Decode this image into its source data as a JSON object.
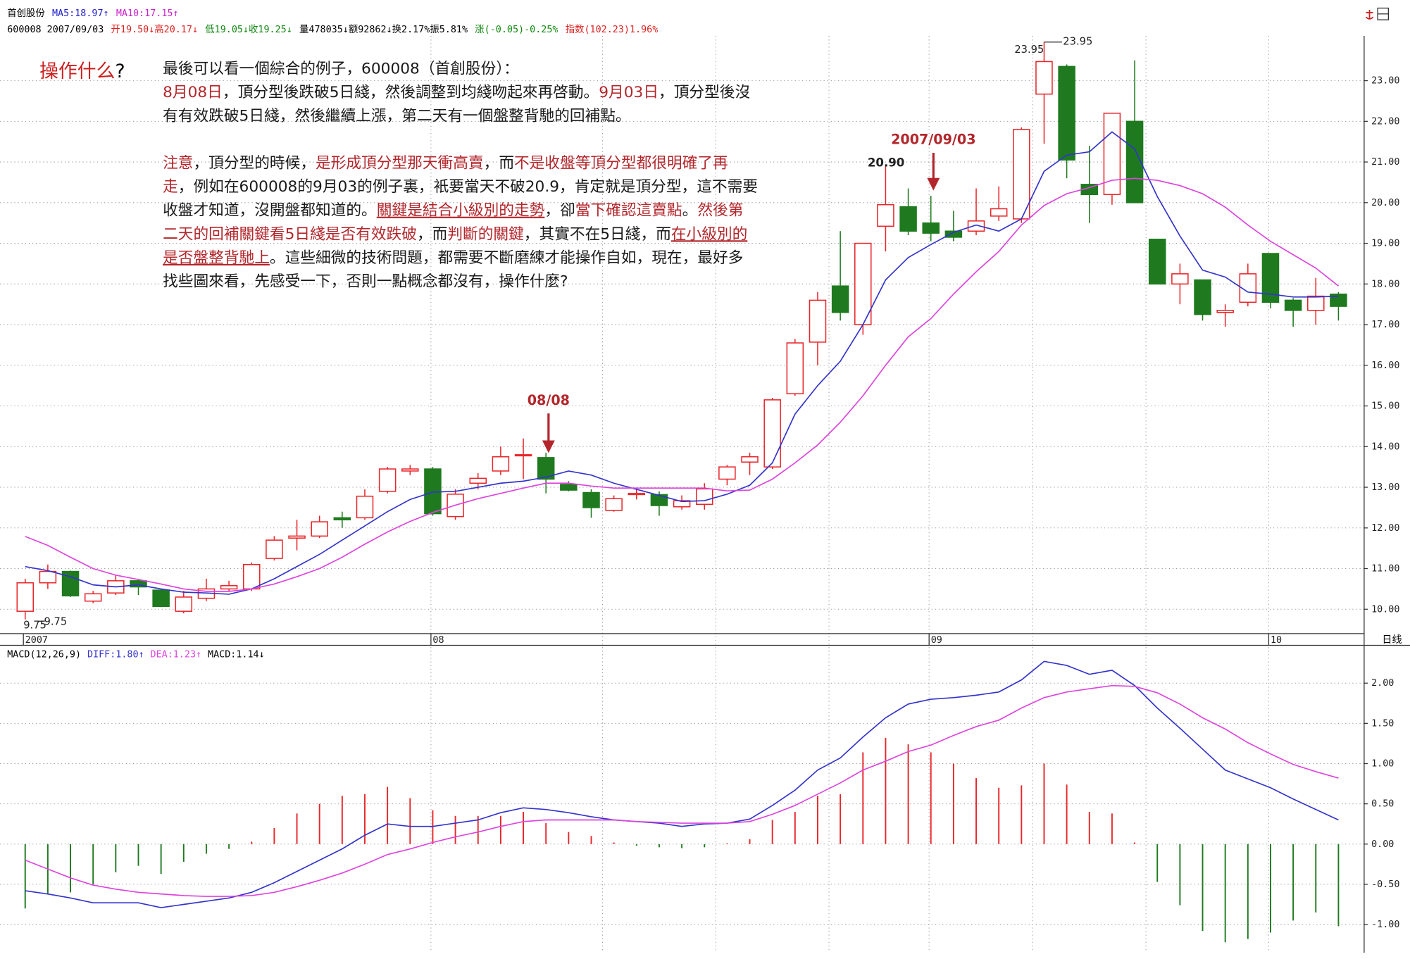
{
  "chart_data": [
    {
      "type": "candlestick",
      "legend_lines": [
        [
          {
            "text": "首创股份",
            "color": "#000000"
          },
          {
            "text": "MA5:18.97↑",
            "color": "#2222cc"
          },
          {
            "text": "MA10:17.15↑",
            "color": "#cc22cc"
          }
        ],
        [
          {
            "text": "600008 2007/09/03",
            "color": "#000000"
          },
          {
            "text": "开19.50↓高20.17↓",
            "color": "#dd2222"
          },
          {
            "text": "低19.05↓收19.25↓",
            "color": "#118811"
          },
          {
            "text": "量478035↓额92862↓换2.17%振5.81%",
            "color": "#000000"
          },
          {
            "text": "涨(-0.05)-0.25%",
            "color": "#118811"
          },
          {
            "text": "指数(102.23)1.96%",
            "color": "#dd2222"
          }
        ]
      ],
      "period": "日线",
      "categories": [
        "2007",
        null,
        null,
        null,
        null,
        null,
        null,
        null,
        null,
        null,
        null,
        null,
        null,
        null,
        null,
        null,
        null,
        null,
        "08",
        null,
        null,
        null,
        null,
        null,
        null,
        null,
        null,
        null,
        null,
        null,
        null,
        null,
        null,
        null,
        null,
        null,
        null,
        null,
        null,
        null,
        "09",
        null,
        null,
        null,
        null,
        null,
        null,
        null,
        null,
        null,
        null,
        null,
        null,
        null,
        null,
        "10",
        null,
        null,
        null
      ],
      "open": [
        9.95,
        10.65,
        10.93,
        10.2,
        10.4,
        10.7,
        10.47,
        9.95,
        10.27,
        10.5,
        10.5,
        11.25,
        11.75,
        11.8,
        12.25,
        12.25,
        12.9,
        13.4,
        13.45,
        12.28,
        13.1,
        13.4,
        13.78,
        13.73,
        13.07,
        12.87,
        12.43,
        12.82,
        12.82,
        12.52,
        12.58,
        13.2,
        13.62,
        13.5,
        15.3,
        16.57,
        17.95,
        17.0,
        19.42,
        19.9,
        19.5,
        19.3,
        19.3,
        19.67,
        19.6,
        22.67,
        23.35,
        20.45,
        20.2,
        22.0,
        19.1,
        18.0,
        18.1,
        17.3,
        17.55,
        18.75,
        17.6,
        17.35,
        17.75
      ],
      "high": [
        10.75,
        11.1,
        10.95,
        10.45,
        10.85,
        10.75,
        10.5,
        10.45,
        10.75,
        10.7,
        11.15,
        11.8,
        12.2,
        12.3,
        12.4,
        12.95,
        13.5,
        13.55,
        13.5,
        12.95,
        13.35,
        14.0,
        14.2,
        13.85,
        13.15,
        12.95,
        12.8,
        12.95,
        12.9,
        12.8,
        13.1,
        13.55,
        13.85,
        15.2,
        16.65,
        17.8,
        19.3,
        19.0,
        20.9,
        20.35,
        20.17,
        19.8,
        20.35,
        20.4,
        21.85,
        23.95,
        23.4,
        21.4,
        22.2,
        23.5,
        19.1,
        18.5,
        18.1,
        17.5,
        18.5,
        18.75,
        17.65,
        18.15,
        17.8
      ],
      "low": [
        9.75,
        10.5,
        10.3,
        10.15,
        10.35,
        10.35,
        10.05,
        9.9,
        10.2,
        10.45,
        10.45,
        11.2,
        11.45,
        11.75,
        12.0,
        12.2,
        12.85,
        13.3,
        12.3,
        12.2,
        12.95,
        13.3,
        13.2,
        12.85,
        12.9,
        12.25,
        12.4,
        12.7,
        12.3,
        12.45,
        12.45,
        13.05,
        13.3,
        13.45,
        15.25,
        16.0,
        17.1,
        16.75,
        18.8,
        19.2,
        19.05,
        19.05,
        19.2,
        19.55,
        19.5,
        21.45,
        20.6,
        19.5,
        19.95,
        20.0,
        18.0,
        17.5,
        17.1,
        16.95,
        17.45,
        17.4,
        16.95,
        17.0,
        17.1
      ],
      "close": [
        10.65,
        10.93,
        10.33,
        10.38,
        10.7,
        10.55,
        10.07,
        10.3,
        10.5,
        10.58,
        11.1,
        11.7,
        11.8,
        12.15,
        12.2,
        12.78,
        13.45,
        13.45,
        12.35,
        12.83,
        13.22,
        13.75,
        13.8,
        13.2,
        12.93,
        12.5,
        12.72,
        12.85,
        12.55,
        12.67,
        12.96,
        13.5,
        13.75,
        15.15,
        16.55,
        17.6,
        17.3,
        19.0,
        19.95,
        19.3,
        19.25,
        19.15,
        19.55,
        19.85,
        21.8,
        23.47,
        21.05,
        20.2,
        22.2,
        20.0,
        18.0,
        18.25,
        17.25,
        17.35,
        18.25,
        17.55,
        17.35,
        17.7,
        17.45
      ],
      "high_labels": [
        null,
        null,
        null,
        null,
        null,
        null,
        null,
        null,
        null,
        null,
        null,
        null,
        null,
        null,
        null,
        null,
        null,
        null,
        null,
        null,
        null,
        null,
        null,
        null,
        null,
        null,
        null,
        null,
        null,
        null,
        null,
        null,
        null,
        null,
        null,
        null,
        null,
        null,
        "20.90",
        null,
        null,
        null,
        null,
        null,
        null,
        "23.95",
        null,
        null,
        null,
        null,
        null,
        null,
        null,
        null,
        null,
        null,
        null,
        null,
        null
      ],
      "low_labels": [
        "9.75",
        null,
        null,
        null,
        null,
        null,
        null,
        null,
        null,
        null,
        null,
        null,
        null,
        null,
        null,
        null,
        null,
        null,
        null,
        null,
        null,
        null,
        null,
        null,
        null,
        null,
        null,
        null,
        null,
        null,
        null,
        null,
        null,
        null,
        null,
        null,
        null,
        null,
        null,
        null,
        null,
        null,
        null,
        null,
        null,
        null,
        null,
        null,
        null,
        null,
        null,
        null,
        null,
        null,
        null,
        null,
        null,
        null,
        null
      ],
      "up_color": "#e8262a",
      "down_color": "#1f7a1f",
      "ma5": {
        "color": "#3333cc",
        "values": [
          11.05,
          10.95,
          10.8,
          10.6,
          10.55,
          10.6,
          10.5,
          10.42,
          10.4,
          10.37,
          10.5,
          10.75,
          11.05,
          11.35,
          11.7,
          12.05,
          12.4,
          12.7,
          12.88,
          12.9,
          13.0,
          13.1,
          13.15,
          13.25,
          13.4,
          13.3,
          13.1,
          12.95,
          12.8,
          12.65,
          12.67,
          12.83,
          13.05,
          13.6,
          14.8,
          15.5,
          16.1,
          17.0,
          18.1,
          18.65,
          18.97,
          19.27,
          19.45,
          19.3,
          19.6,
          20.77,
          21.17,
          21.25,
          21.74,
          21.32,
          20.15,
          19.18,
          18.34,
          18.17,
          17.8,
          17.75,
          17.68,
          17.68,
          17.7
        ]
      },
      "ma10": {
        "color": "#dd44dd",
        "values": [
          11.79,
          11.57,
          11.28,
          11.0,
          10.84,
          10.73,
          10.62,
          10.5,
          10.44,
          10.44,
          10.5,
          10.62,
          10.8,
          11.0,
          11.28,
          11.6,
          11.9,
          12.16,
          12.38,
          12.56,
          12.72,
          12.85,
          12.98,
          13.1,
          13.1,
          13.03,
          12.98,
          12.98,
          12.98,
          12.98,
          12.98,
          12.91,
          12.93,
          13.2,
          13.6,
          14.04,
          14.6,
          15.25,
          16.0,
          16.7,
          17.15,
          17.75,
          18.3,
          18.8,
          19.45,
          19.93,
          20.22,
          20.37,
          20.55,
          20.6,
          20.55,
          20.42,
          20.22,
          19.89,
          19.45,
          19.05,
          18.72,
          18.39,
          17.95
        ]
      },
      "ylim": [
        9.4,
        24.1
      ],
      "yticks": [
        {
          "value": 10,
          "label": "10.00"
        },
        {
          "value": 11,
          "label": "11.00"
        },
        {
          "value": 12,
          "label": "12.00"
        },
        {
          "value": 13,
          "label": "13.00"
        },
        {
          "value": 14,
          "label": "14.00"
        },
        {
          "value": 15,
          "label": "15.00"
        },
        {
          "value": 16,
          "label": "16.00"
        },
        {
          "value": 17,
          "label": "17.00"
        },
        {
          "value": 18,
          "label": "18.00"
        },
        {
          "value": 19,
          "label": "19.00"
        },
        {
          "value": 20,
          "label": "20.00"
        },
        {
          "value": 21,
          "label": "21.00"
        },
        {
          "value": 22,
          "label": "22.00"
        },
        {
          "value": 23,
          "label": "23.00"
        }
      ],
      "grid": true,
      "annotations": [
        {
          "text": "08/08"
        },
        {
          "text": "2007/09/03"
        }
      ]
    },
    {
      "type": "macd",
      "legend_line": [
        {
          "text": "MACD(12,26,9)",
          "color": "#000000"
        },
        {
          "text": "DIFF:1.80↑",
          "color": "#3333cc"
        },
        {
          "text": "DEA:1.23↑",
          "color": "#dd44dd"
        },
        {
          "text": "MACD:1.14↓",
          "color": "#000000"
        }
      ],
      "diff": {
        "color": "#3333cc",
        "values": [
          -0.58,
          -0.62,
          -0.67,
          -0.73,
          -0.73,
          -0.73,
          -0.79,
          -0.75,
          -0.71,
          -0.67,
          -0.6,
          -0.48,
          -0.34,
          -0.2,
          -0.06,
          0.11,
          0.25,
          0.22,
          0.22,
          0.26,
          0.3,
          0.39,
          0.45,
          0.43,
          0.39,
          0.34,
          0.3,
          0.28,
          0.26,
          0.22,
          0.25,
          0.26,
          0.31,
          0.48,
          0.67,
          0.92,
          1.07,
          1.33,
          1.57,
          1.74,
          1.8,
          1.82,
          1.85,
          1.89,
          2.04,
          2.27,
          2.22,
          2.11,
          2.16,
          1.97,
          1.69,
          1.44,
          1.18,
          0.92,
          0.81,
          0.7,
          0.56,
          0.43,
          0.3
        ]
      },
      "dea": {
        "color": "#dd44dd",
        "values": [
          -0.2,
          -0.31,
          -0.42,
          -0.51,
          -0.56,
          -0.6,
          -0.62,
          -0.64,
          -0.65,
          -0.65,
          -0.64,
          -0.6,
          -0.53,
          -0.45,
          -0.36,
          -0.25,
          -0.13,
          -0.06,
          0.02,
          0.09,
          0.15,
          0.22,
          0.28,
          0.3,
          0.3,
          0.3,
          0.3,
          0.28,
          0.27,
          0.26,
          0.26,
          0.26,
          0.28,
          0.37,
          0.48,
          0.62,
          0.76,
          0.92,
          1.03,
          1.15,
          1.23,
          1.35,
          1.46,
          1.54,
          1.69,
          1.82,
          1.89,
          1.93,
          1.97,
          1.96,
          1.88,
          1.74,
          1.57,
          1.43,
          1.26,
          1.12,
          0.99,
          0.9,
          0.82
        ]
      },
      "histogram": {
        "values": [
          -0.8,
          -0.62,
          -0.6,
          -0.5,
          -0.35,
          -0.27,
          -0.37,
          -0.22,
          -0.12,
          -0.06,
          0.03,
          0.2,
          0.38,
          0.5,
          0.6,
          0.62,
          0.71,
          0.57,
          0.42,
          0.35,
          0.35,
          0.35,
          0.4,
          0.26,
          0.15,
          0.1,
          0.02,
          -0.02,
          -0.04,
          -0.05,
          -0.04,
          0.01,
          0.06,
          0.3,
          0.4,
          0.6,
          0.62,
          1.14,
          1.32,
          1.24,
          1.14,
          1.0,
          0.82,
          0.7,
          0.73,
          1.0,
          0.74,
          0.4,
          0.38,
          0.02,
          -0.47,
          -0.76,
          -1.08,
          -1.22,
          -1.18,
          -1.1,
          -0.95,
          -0.85,
          -1.02
        ],
        "up_color": "#e8262a",
        "down_color": "#1f7a1f"
      },
      "ylim": [
        -1.35,
        2.47
      ],
      "yticks": [
        {
          "value": -1,
          "label": "-1.00"
        },
        {
          "value": -0.5,
          "label": "-0.50"
        },
        {
          "value": 0,
          "label": "0.00"
        },
        {
          "value": 0.5,
          "label": "0.50"
        },
        {
          "value": 1,
          "label": "1.00"
        },
        {
          "value": 1.5,
          "label": "1.50"
        },
        {
          "value": 2,
          "label": "2.00"
        }
      ],
      "grid": true
    }
  ],
  "note": {
    "question": [
      {
        "text": "操作什么",
        "color": "#cc1f1f"
      },
      {
        "text": "?",
        "color": "#000000"
      }
    ],
    "lines": [
      [
        {
          "text": "最後可以看一個綜合的例子，600008（首創股份）：",
          "color": "#1a1a1a"
        }
      ],
      [
        {
          "text": "8月08日",
          "color": "#b3262b"
        },
        {
          "text": "，頂分型後跌破5日綫，然後調整到均綫吻起來再啓動。",
          "color": "#1a1a1a"
        },
        {
          "text": "9月03日",
          "color": "#b3262b"
        },
        {
          "text": "，頂分型後沒",
          "color": "#1a1a1a"
        }
      ],
      [
        {
          "text": "有有效跌破5日綫，然後繼續上漲，第二天有一個盤整背馳的回補點。",
          "color": "#1a1a1a"
        }
      ],
      [
        {
          "text": "注意",
          "color": "#b3262b"
        },
        {
          "text": "，頂分型的時候，",
          "color": "#1a1a1a"
        },
        {
          "text": "是形成頂分型那天衝高賣",
          "color": "#b3262b"
        },
        {
          "text": "，而",
          "color": "#1a1a1a"
        },
        {
          "text": "不是收盤等頂分型都很明確了再",
          "color": "#b3262b"
        }
      ],
      [
        {
          "text": "走",
          "color": "#b3262b"
        },
        {
          "text": "，例如在600008的9月03的例子裏，衹要當天不破20.9，肯定就是頂分型，這不需要",
          "color": "#1a1a1a"
        }
      ],
      [
        {
          "text": "收盤才知道，沒開盤都知道的。",
          "color": "#1a1a1a"
        },
        {
          "text": "關鍵是結合小級別的走勢",
          "color": "#b3262b",
          "underline": true
        },
        {
          "text": "，卻",
          "color": "#1a1a1a"
        },
        {
          "text": "當下確認這賣點",
          "color": "#b3262b"
        },
        {
          "text": "。",
          "color": "#1a1a1a"
        },
        {
          "text": "然後第",
          "color": "#b3262b"
        }
      ],
      [
        {
          "text": "二天的回補關鍵看5日綫是否有效跌破",
          "color": "#b3262b"
        },
        {
          "text": "，而",
          "color": "#1a1a1a"
        },
        {
          "text": "判斷的關鍵",
          "color": "#b3262b"
        },
        {
          "text": "，其實不在5日綫，而",
          "color": "#1a1a1a"
        },
        {
          "text": "在小級別的",
          "color": "#b3262b",
          "underline": true
        }
      ],
      [
        {
          "text": "是否盤整背馳上",
          "color": "#b3262b",
          "underline": true
        },
        {
          "text": "。這些細微的技術問題，都需要不斷磨練才能操作自如，現在，最好多",
          "color": "#1a1a1a"
        }
      ],
      [
        {
          "text": "找些圖來看，先感受一下，否則一點概念都沒有，操作什麼?",
          "color": "#1a1a1a"
        }
      ]
    ]
  }
}
